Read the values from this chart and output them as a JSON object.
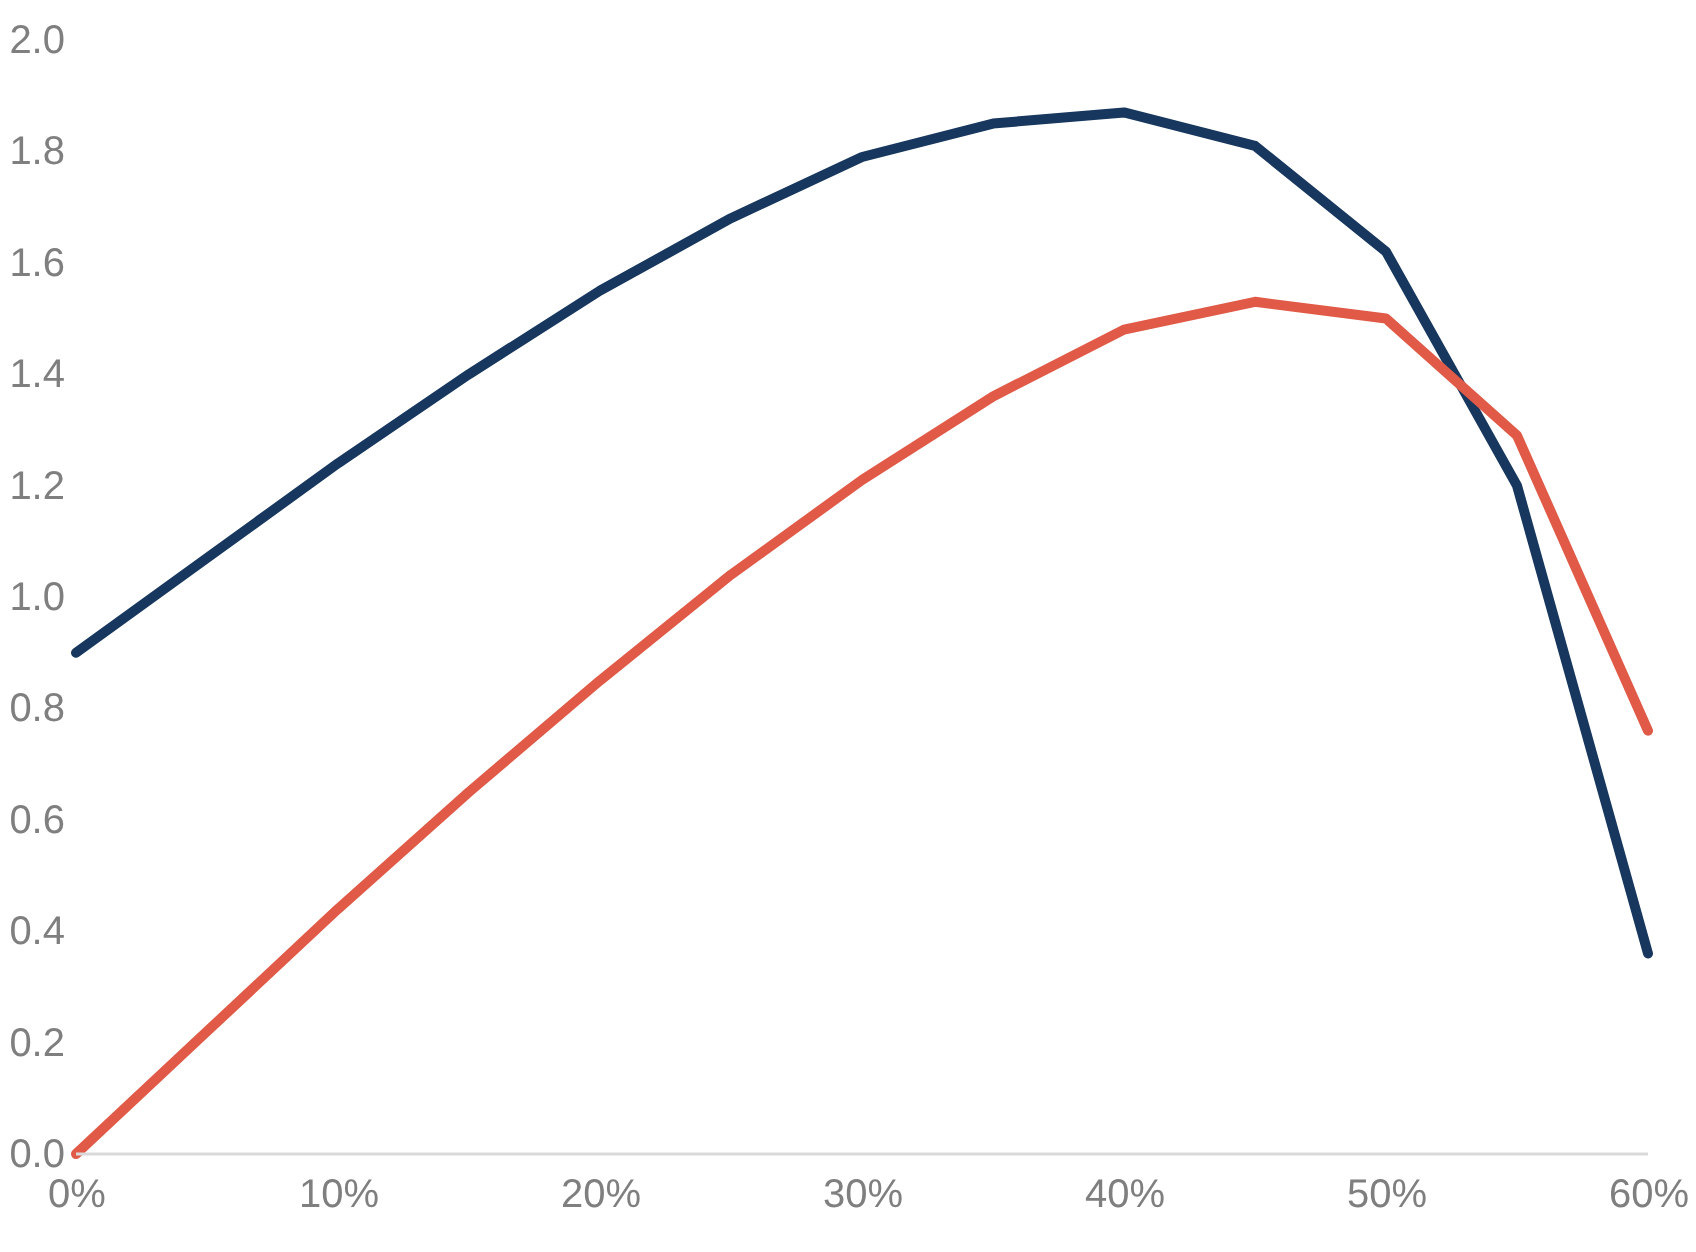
{
  "chart_data": {
    "type": "line",
    "x": [
      0,
      5,
      10,
      15,
      20,
      25,
      30,
      35,
      40,
      45,
      50,
      55,
      60
    ],
    "series": [
      {
        "color": "#17375e",
        "values": [
          0.9,
          1.07,
          1.24,
          1.4,
          1.55,
          1.68,
          1.79,
          1.85,
          1.87,
          1.81,
          1.62,
          1.2,
          0.36
        ]
      },
      {
        "color": "#e05a47",
        "values": [
          0.0,
          0.22,
          0.44,
          0.65,
          0.85,
          1.04,
          1.21,
          1.36,
          1.48,
          1.53,
          1.5,
          1.29,
          0.76
        ]
      }
    ],
    "xlim": [
      0,
      60
    ],
    "xticks": [
      {
        "value": 0,
        "label": "0%"
      },
      {
        "value": 10,
        "label": "10%"
      },
      {
        "value": 20,
        "label": "20%"
      },
      {
        "value": 30,
        "label": "30%"
      },
      {
        "value": 40,
        "label": "40%"
      },
      {
        "value": 50,
        "label": "50%"
      },
      {
        "value": 60,
        "label": "60%"
      }
    ],
    "ylim": [
      0,
      2
    ],
    "yticks": [
      {
        "value": 0,
        "label": "0.0"
      },
      {
        "value": 0.2,
        "label": "0.2"
      },
      {
        "value": 0.4,
        "label": "0.4"
      },
      {
        "value": 0.6,
        "label": "0.6"
      },
      {
        "value": 0.8,
        "label": "0.8"
      },
      {
        "value": 1,
        "label": "1.0"
      },
      {
        "value": 1.2,
        "label": "1.2"
      },
      {
        "value": 1.4,
        "label": "1.4"
      },
      {
        "value": 1.6,
        "label": "1.6"
      },
      {
        "value": 1.8,
        "label": "1.8"
      },
      {
        "value": 2,
        "label": "2.0"
      }
    ],
    "grid": false,
    "marker": "none",
    "line_style": "solid"
  }
}
